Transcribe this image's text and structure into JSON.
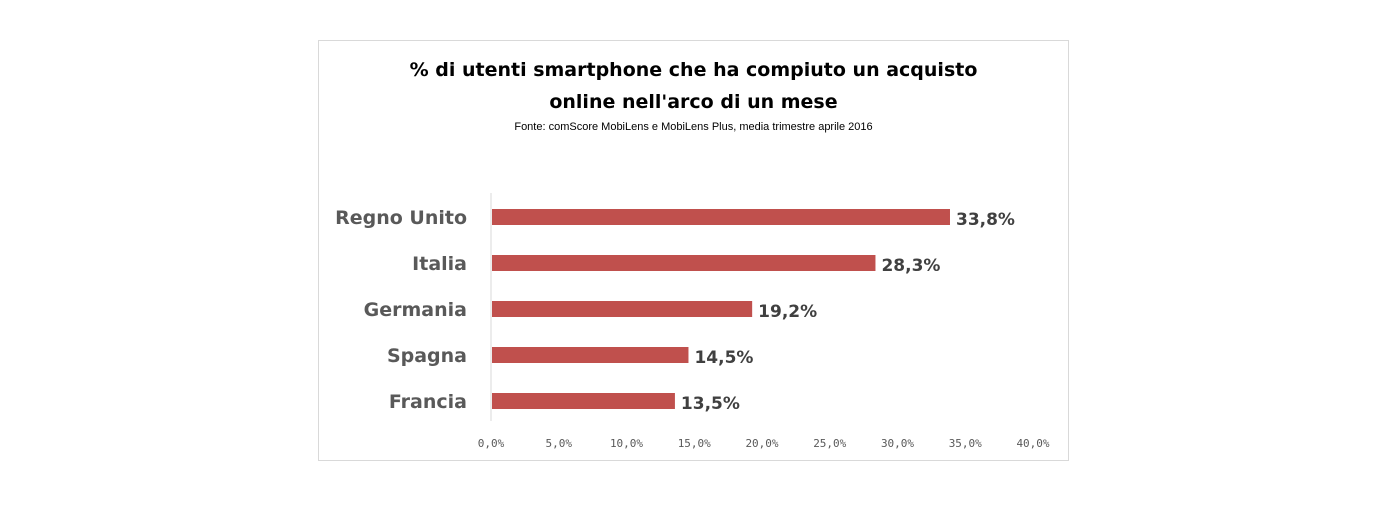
{
  "chart_data": {
    "type": "bar",
    "orientation": "horizontal",
    "title_lines": [
      "% di utenti smartphone  che ha compiuto  un acquisto",
      "online nell'arco di un mese"
    ],
    "subtitle": "Fonte: comScore MobiLens e MobiLens Plus, media trimestre aprile 2016",
    "categories": [
      "Regno Unito",
      "Italia",
      "Germania",
      "Spagna",
      "Francia"
    ],
    "values": [
      33.8,
      28.3,
      19.2,
      14.5,
      13.5
    ],
    "value_labels": [
      "33,8%",
      "28,3%",
      "19,2%",
      "14,5%",
      "13,5%"
    ],
    "xlim": [
      0,
      40
    ],
    "x_ticks": [
      0,
      5,
      10,
      15,
      20,
      25,
      30,
      35,
      40
    ],
    "x_tick_labels": [
      "0,0%",
      "5,0%",
      "10,0%",
      "15,0%",
      "20,0%",
      "25,0%",
      "30,0%",
      "35,0%",
      "40,0%"
    ],
    "bar_color": "#c0504d",
    "axis_color": "#d9d9d9",
    "grid": false,
    "legend": "none"
  }
}
